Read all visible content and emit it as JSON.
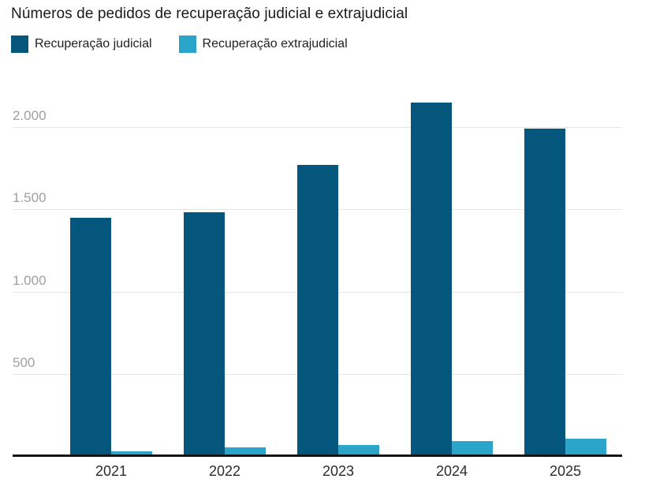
{
  "title": "Números de pedidos de recuperação judicial e extrajudicial",
  "chart_data": {
    "type": "bar",
    "title": "Números de pedidos de recuperação judicial e extrajudicial",
    "categories": [
      "2021",
      "2022",
      "2023",
      "2024",
      "2025"
    ],
    "series": [
      {
        "name": "Recuperação judicial",
        "color": "#05567d",
        "values": [
          1450,
          1480,
          1770,
          2150,
          1990
        ]
      },
      {
        "name": "Recuperação extrajudicial",
        "color": "#2aa5c9",
        "values": [
          30,
          55,
          65,
          90,
          105
        ]
      }
    ],
    "xlabel": "",
    "ylabel": "",
    "ylim": [
      0,
      2200
    ],
    "y_ticks": [
      {
        "value": 500,
        "label": "500"
      },
      {
        "value": 1000,
        "label": "1.000"
      },
      {
        "value": 1500,
        "label": "1.500"
      },
      {
        "value": 2000,
        "label": "2.000"
      }
    ],
    "grid": "horizontal",
    "legend_position": "top-left",
    "colors": {
      "judicial": "#05567d",
      "extrajudicial": "#2aa5c9",
      "gridline": "#e4e4e4",
      "axis_line": "#141414",
      "ytick_text": "#9da0a3",
      "xtick_text": "#2b2b2b",
      "title_text": "#1a1a1a"
    }
  }
}
